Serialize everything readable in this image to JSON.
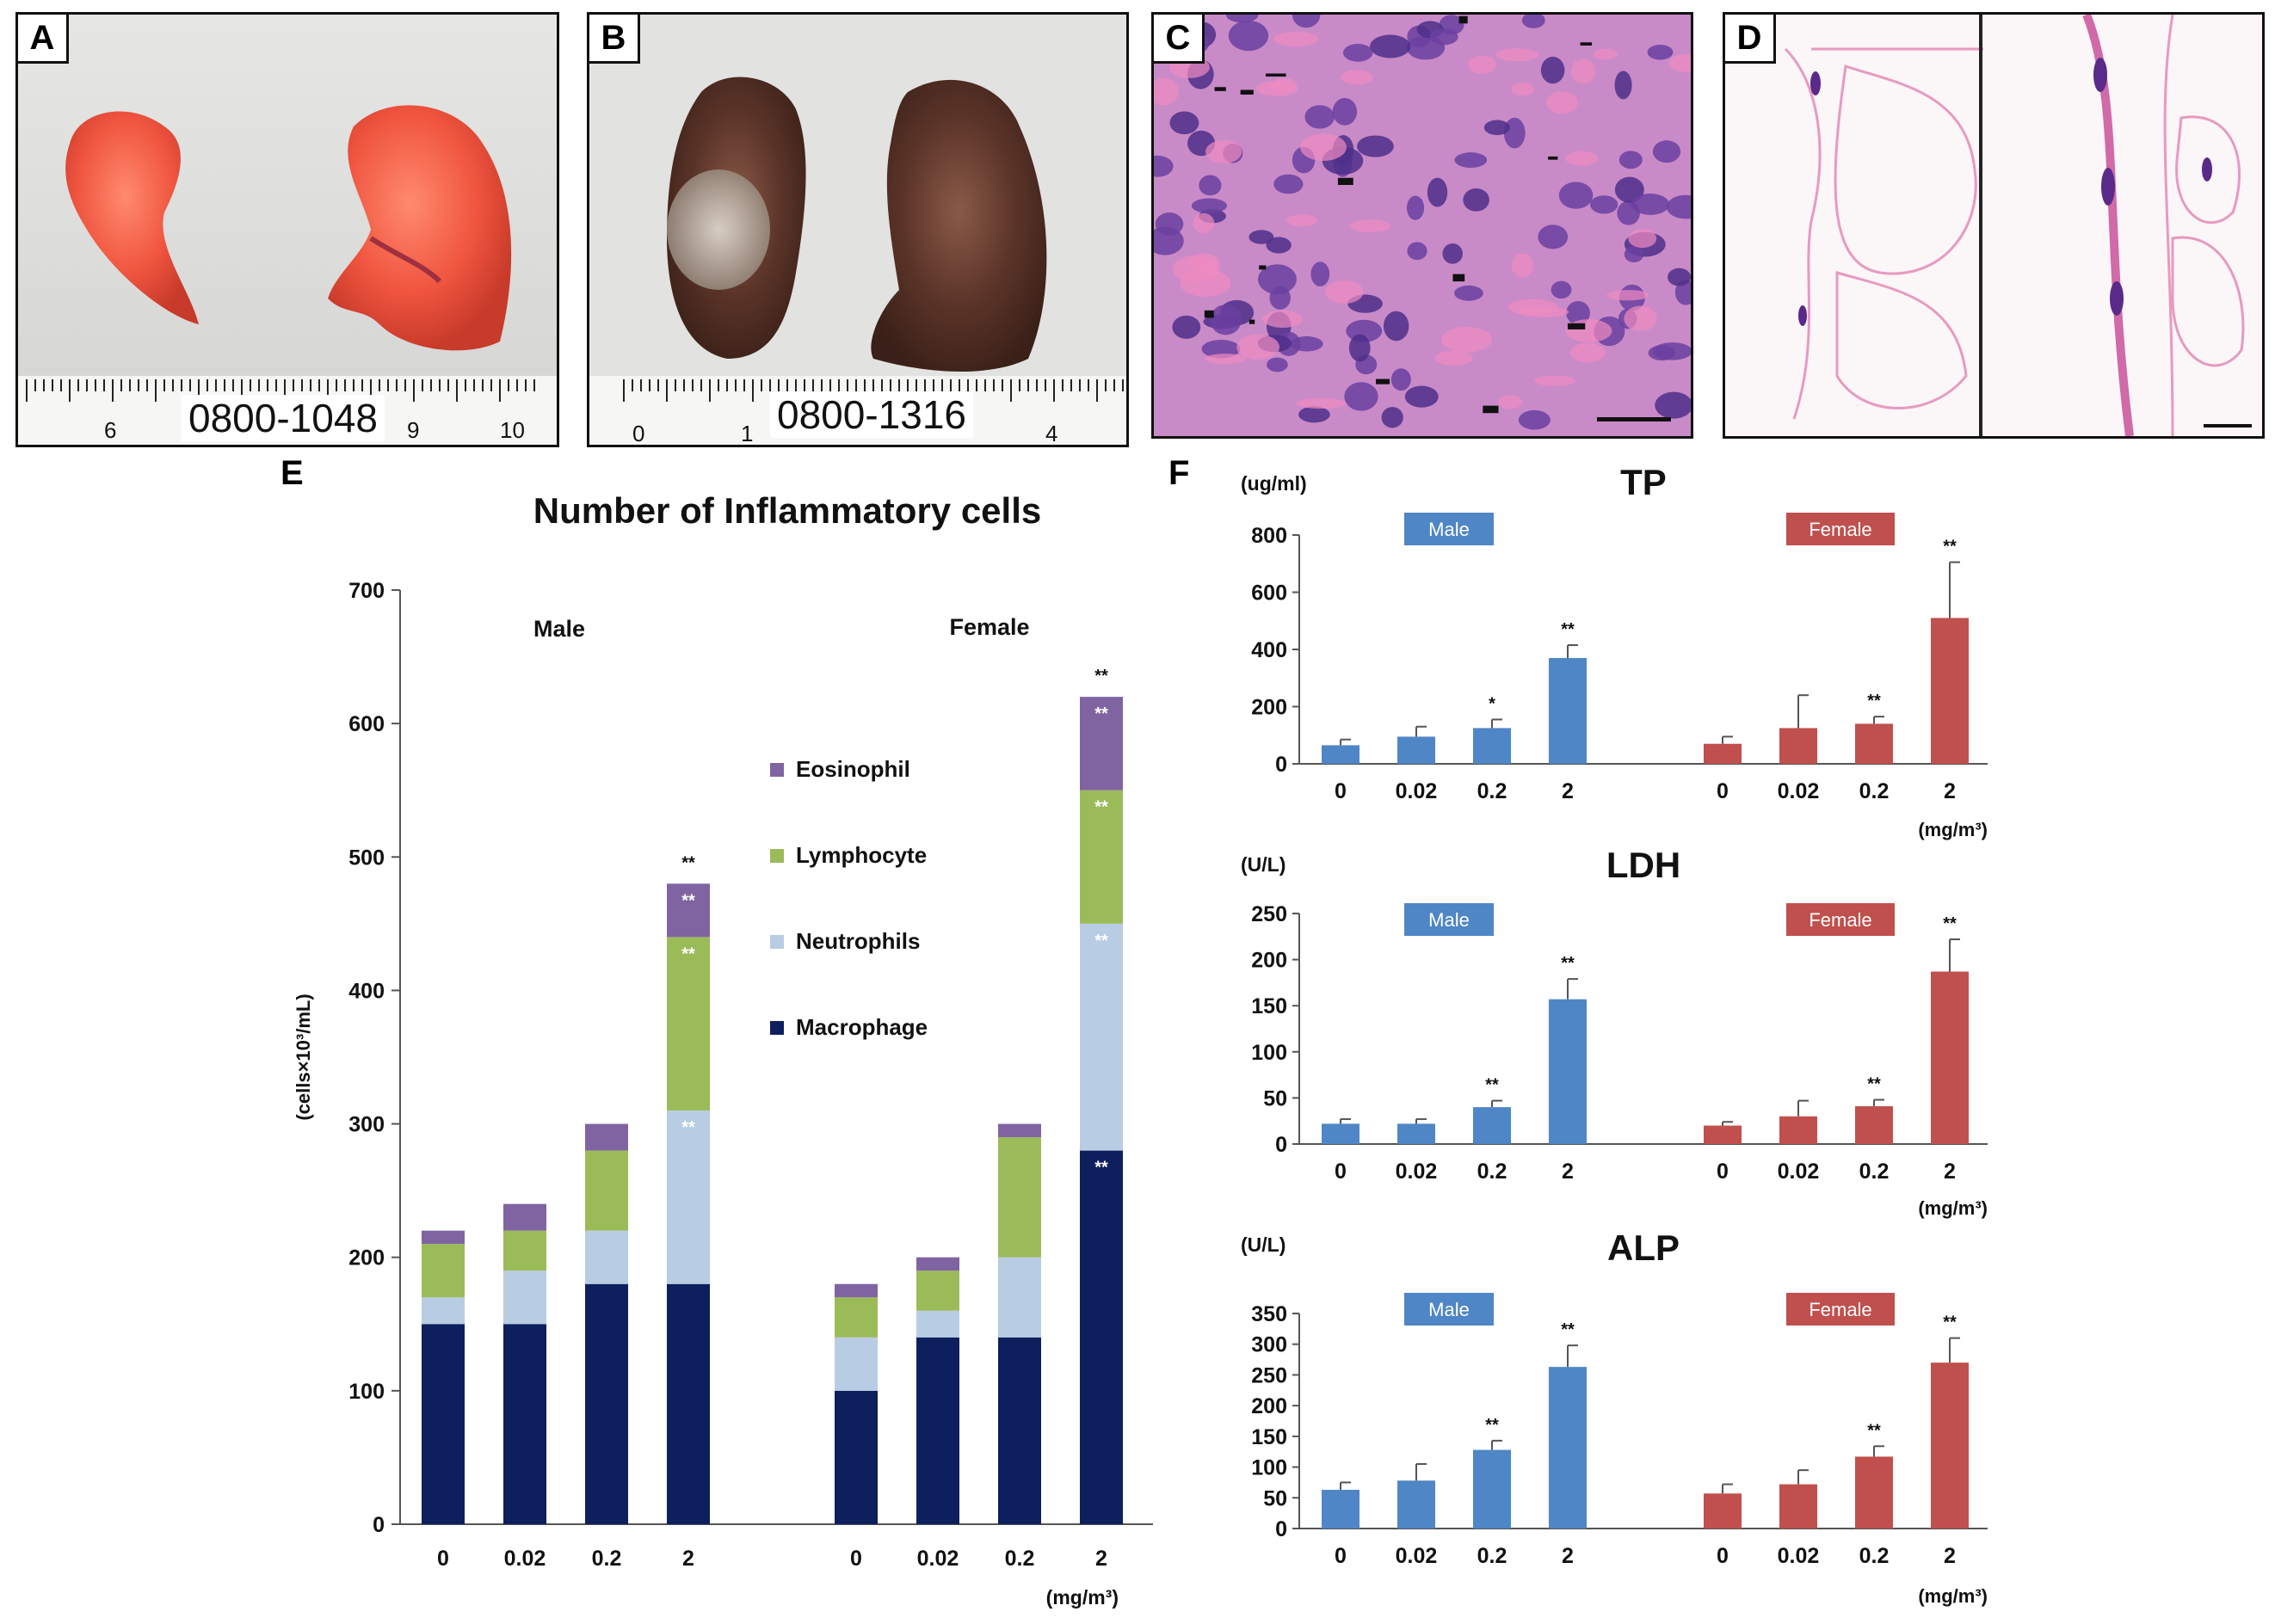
{
  "panels": {
    "a": {
      "label": "A",
      "ruler_text": "0800-1048",
      "ruler_nums": [
        "6",
        "9",
        "10"
      ]
    },
    "b": {
      "label": "B",
      "ruler_text": "0800-1316",
      "ruler_nums": [
        "0",
        "1",
        "4"
      ]
    },
    "c": {
      "label": "C"
    },
    "d": {
      "label": "D"
    },
    "e": {
      "label": "E"
    },
    "f": {
      "label": "F"
    }
  },
  "colors": {
    "macrophage": "#0d1f5c",
    "neutrophils": "#b8cce4",
    "lymphocyte": "#9bbb59",
    "eosinophil": "#8064a2",
    "male_bar": "#4f86c6",
    "female_bar": "#c0504d"
  },
  "chart_data": [
    {
      "id": "inflammatory",
      "type": "bar",
      "stacked": true,
      "title": "Number of Inflammatory cells",
      "ylabel": "(cells×10³/mL)",
      "xunit": "(mg/m³)",
      "ylim": [
        0,
        700
      ],
      "yticks": [
        0,
        100,
        200,
        300,
        400,
        500,
        600,
        700
      ],
      "group_labels": [
        "Male",
        "Female"
      ],
      "categories": [
        "0",
        "0.02",
        "0.2",
        "2"
      ],
      "legend": [
        "Eosinophil",
        "Lymphocyte",
        "Neutrophils",
        "Macrophage"
      ],
      "series": [
        {
          "name": "Macrophage",
          "male": [
            150,
            150,
            180,
            180
          ],
          "female": [
            100,
            140,
            140,
            280
          ]
        },
        {
          "name": "Neutrophils",
          "male": [
            20,
            40,
            40,
            130
          ],
          "female": [
            40,
            20,
            60,
            170
          ]
        },
        {
          "name": "Lymphocyte",
          "male": [
            40,
            30,
            60,
            130
          ],
          "female": [
            30,
            30,
            90,
            100
          ]
        },
        {
          "name": "Eosinophil",
          "male": [
            10,
            20,
            20,
            40
          ],
          "female": [
            10,
            10,
            10,
            70
          ]
        }
      ],
      "total_sig": {
        "male": [
          "",
          "",
          "",
          "**"
        ],
        "female": [
          "",
          "",
          "",
          "**"
        ]
      },
      "segment_sig": {
        "male": [
          [
            "",
            "",
            "",
            ""
          ],
          [
            "",
            "",
            "",
            ""
          ],
          [
            "",
            "",
            "",
            ""
          ],
          [
            "",
            "**",
            "**",
            "**"
          ]
        ],
        "female": [
          [
            "",
            "",
            "",
            ""
          ],
          [
            "",
            "",
            "",
            ""
          ],
          [
            "",
            "",
            "",
            ""
          ],
          [
            "**",
            "**",
            "**",
            "**"
          ]
        ]
      }
    },
    {
      "id": "tp",
      "type": "bar",
      "title": "TP",
      "unit": "(ug/ml)",
      "xunit": "(mg/m³)",
      "ylim": [
        0,
        800
      ],
      "yticks": [
        0,
        200,
        400,
        600,
        800
      ],
      "categories": [
        "0",
        "0.02",
        "0.2",
        "2"
      ],
      "group_labels": [
        "Male",
        "Female"
      ],
      "male": {
        "values": [
          65,
          95,
          125,
          370
        ],
        "errors": [
          20,
          35,
          30,
          45
        ],
        "sig": [
          "",
          "",
          "*",
          "**"
        ]
      },
      "female": {
        "values": [
          70,
          125,
          140,
          510
        ],
        "errors": [
          25,
          115,
          25,
          195
        ],
        "sig": [
          "",
          "",
          "**",
          "**"
        ]
      }
    },
    {
      "id": "ldh",
      "type": "bar",
      "title": "LDH",
      "unit": "(U/L)",
      "xunit": "(mg/m³)",
      "ylim": [
        0,
        250
      ],
      "yticks": [
        0,
        50,
        100,
        150,
        200,
        250
      ],
      "categories": [
        "0",
        "0.02",
        "0.2",
        "2"
      ],
      "group_labels": [
        "Male",
        "Female"
      ],
      "male": {
        "values": [
          22,
          22,
          40,
          157
        ],
        "errors": [
          5,
          5,
          7,
          22
        ],
        "sig": [
          "",
          "",
          "**",
          "**"
        ]
      },
      "female": {
        "values": [
          20,
          30,
          41,
          187
        ],
        "errors": [
          4,
          17,
          7,
          35
        ],
        "sig": [
          "",
          "",
          "**",
          "**"
        ]
      }
    },
    {
      "id": "alp",
      "type": "bar",
      "title": "ALP",
      "unit": "(U/L)",
      "xunit": "(mg/m³)",
      "ylim": [
        0,
        350
      ],
      "yticks": [
        0,
        50,
        100,
        150,
        200,
        250,
        300,
        350
      ],
      "categories": [
        "0",
        "0.02",
        "0.2",
        "2"
      ],
      "group_labels": [
        "Male",
        "Female"
      ],
      "male": {
        "values": [
          63,
          78,
          128,
          263
        ],
        "errors": [
          12,
          27,
          15,
          35
        ],
        "sig": [
          "",
          "",
          "**",
          "**"
        ]
      },
      "female": {
        "values": [
          57,
          72,
          117,
          270
        ],
        "errors": [
          15,
          23,
          17,
          40
        ],
        "sig": [
          "",
          "",
          "**",
          "**"
        ]
      }
    }
  ]
}
